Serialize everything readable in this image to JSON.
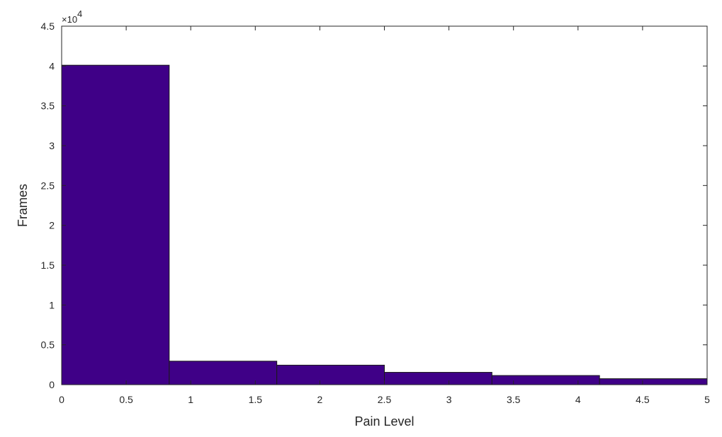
{
  "chart_data": {
    "type": "bar",
    "histogram": true,
    "bin_edges": [
      0,
      0.8333,
      1.6667,
      2.5,
      3.3333,
      4.1667,
      5
    ],
    "values": [
      40100,
      2950,
      2450,
      1550,
      1150,
      750
    ],
    "xlabel": "Pain Level",
    "ylabel": "Frames",
    "xlim": [
      0,
      5
    ],
    "ylim": [
      0,
      45000
    ],
    "xticks": [
      0,
      0.5,
      1,
      1.5,
      2,
      2.5,
      3,
      3.5,
      4,
      4.5,
      5
    ],
    "xtick_labels": [
      "0",
      "0.5",
      "1",
      "1.5",
      "2",
      "2.5",
      "3",
      "3.5",
      "4",
      "4.5",
      "5"
    ],
    "yticks": [
      0,
      5000,
      10000,
      15000,
      20000,
      25000,
      30000,
      35000,
      40000,
      45000
    ],
    "ytick_labels": [
      "0",
      "0.5",
      "1",
      "1.5",
      "2",
      "2.5",
      "3",
      "3.5",
      "4",
      "4.5"
    ],
    "y_exponent_label": "×10",
    "y_exponent_power": "4",
    "grid": false,
    "bar_color": "#3f0087",
    "bar_edge_color": "#1a1a1a"
  }
}
